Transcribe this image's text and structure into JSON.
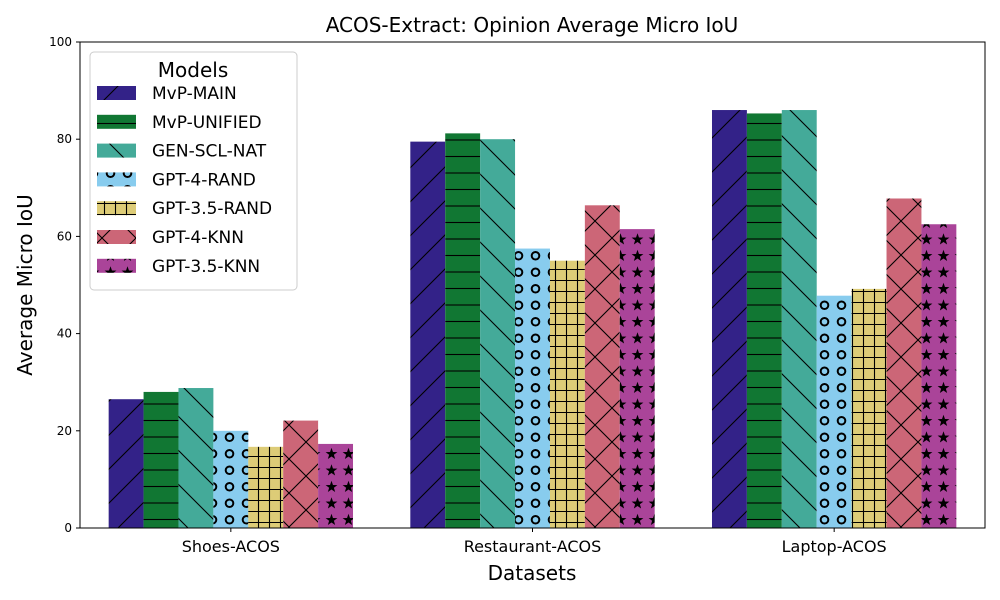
{
  "chart_data": {
    "type": "bar",
    "title": "ACOS-Extract: Opinion Average Micro IoU",
    "xlabel": "Datasets",
    "ylabel": "Average Micro IoU",
    "ylim": [
      0,
      100
    ],
    "yticks": [
      0,
      20,
      40,
      60,
      80,
      100
    ],
    "categories": [
      "Shoes-ACOS",
      "Restaurant-ACOS",
      "Laptop-ACOS"
    ],
    "legend_title": "Models",
    "legend_position": "top-left",
    "grid": false,
    "series": [
      {
        "name": "MvP-MAIN",
        "values": [
          26.5,
          79.5,
          86.0
        ],
        "color": "#332288",
        "pattern": "diagonal-forward"
      },
      {
        "name": "MvP-UNIFIED",
        "values": [
          28.0,
          81.2,
          85.3
        ],
        "color": "#117733",
        "pattern": "horizontal"
      },
      {
        "name": "GEN-SCL-NAT",
        "values": [
          28.8,
          80.0,
          86.0
        ],
        "color": "#44AA99",
        "pattern": "diagonal-back"
      },
      {
        "name": "GPT-4-RAND",
        "values": [
          20.0,
          57.5,
          47.8
        ],
        "color": "#88CCEE",
        "pattern": "circles"
      },
      {
        "name": "GPT-3.5-RAND",
        "values": [
          16.7,
          55.0,
          49.2
        ],
        "color": "#DDCC77",
        "pattern": "grid"
      },
      {
        "name": "GPT-4-KNN",
        "values": [
          22.1,
          66.4,
          67.8
        ],
        "color": "#CC6677",
        "pattern": "crosshatch"
      },
      {
        "name": "GPT-3.5-KNN",
        "values": [
          17.3,
          61.5,
          62.5
        ],
        "color": "#AA4499",
        "pattern": "stars"
      }
    ]
  }
}
